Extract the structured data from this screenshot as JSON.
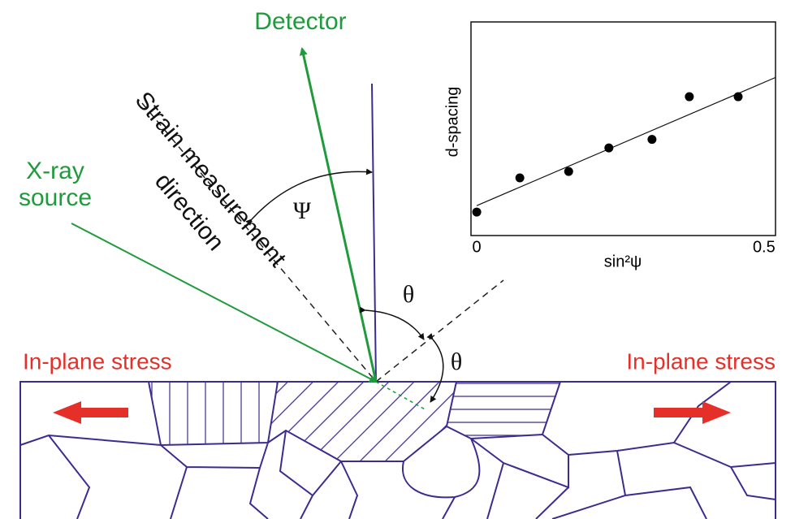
{
  "diagram": {
    "detector": "Detector",
    "xray_source": [
      "X-ray",
      "source"
    ],
    "strain_direction": [
      "Strain measurement",
      "direction"
    ],
    "psi": "Ψ",
    "theta_upper": "θ",
    "theta_lower": "θ",
    "stress_left": "In-plane stress",
    "stress_right": "In-plane stress"
  },
  "chart_data": {
    "type": "scatter",
    "x_label": "sin²ψ",
    "y_label": "d-spacing",
    "x": [
      0,
      0.075,
      0.16,
      0.23,
      0.305,
      0.37,
      0.455
    ],
    "values": [
      0.11,
      0.27,
      0.3,
      0.41,
      0.45,
      0.65,
      0.65
    ],
    "color": "#000000",
    "fit": {
      "x": [
        0,
        0.52
      ],
      "values": [
        0.14,
        0.74
      ]
    },
    "xlim": [
      -0.01,
      0.52
    ],
    "ylim": [
      0,
      1
    ],
    "xticks": [
      0,
      0.5
    ],
    "grid": false
  }
}
